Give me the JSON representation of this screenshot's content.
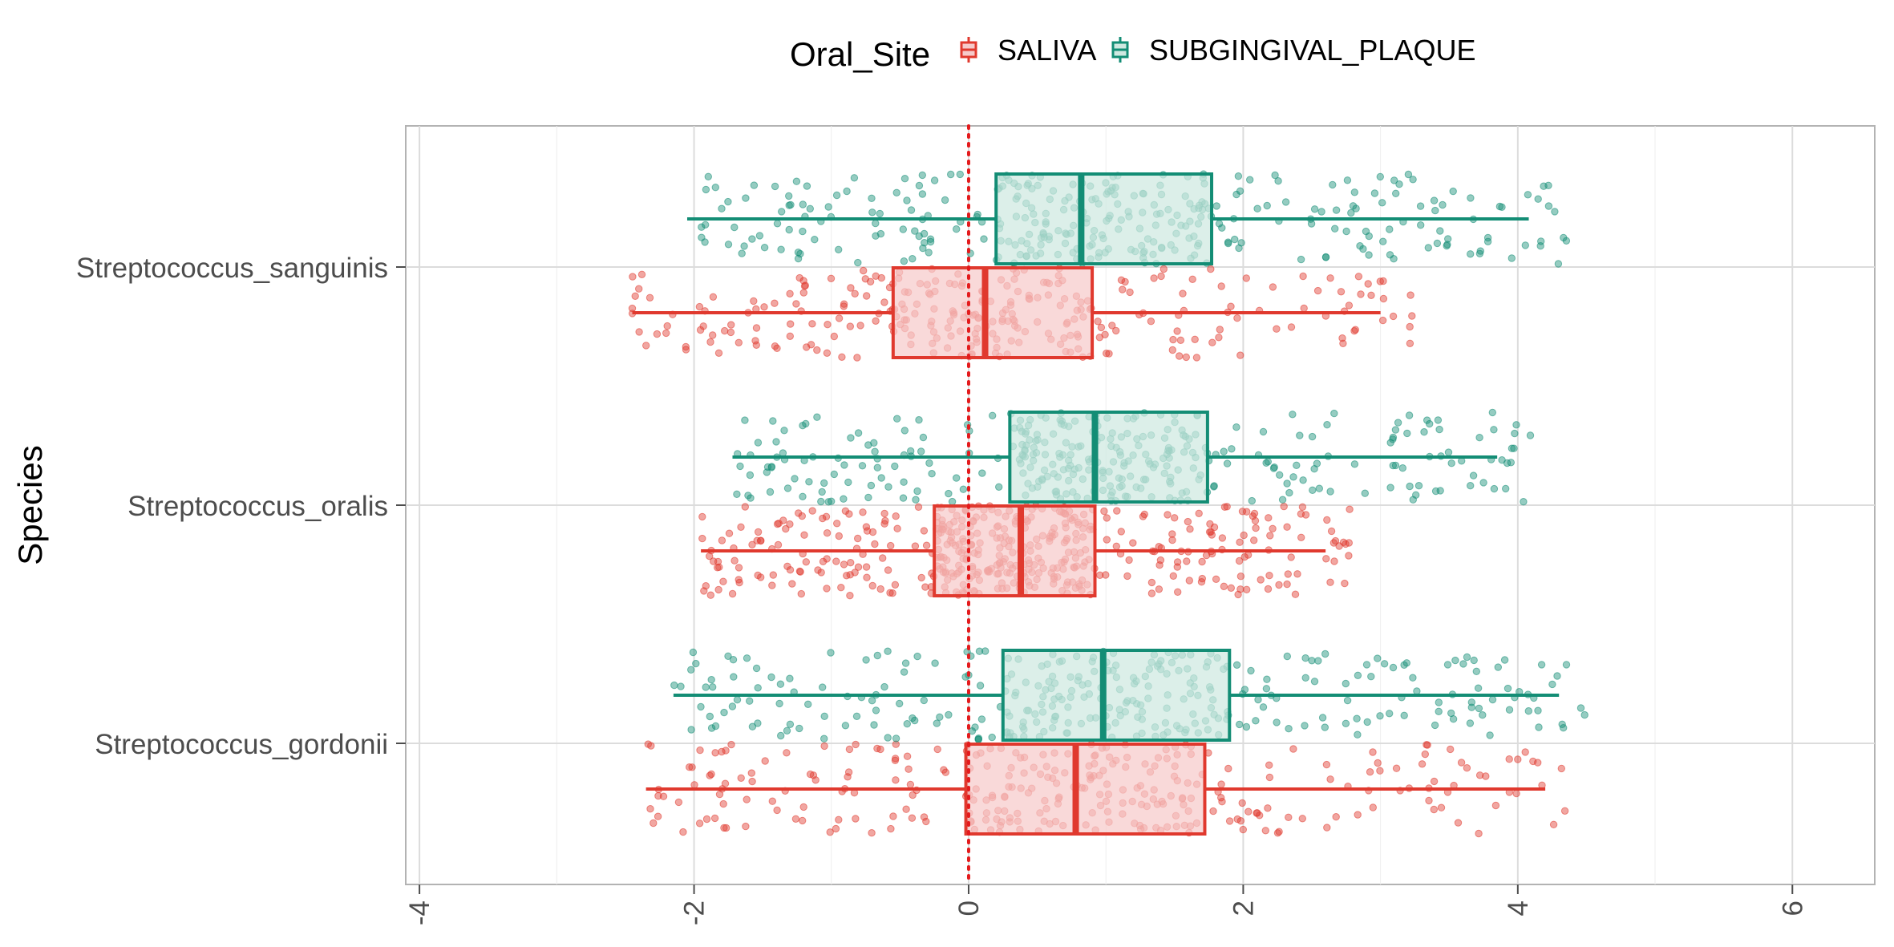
{
  "chart_data": {
    "type": "boxplot",
    "title": "",
    "xlabel": "",
    "ylabel": "Species",
    "xlim": [
      -4.1,
      6.6
    ],
    "xticks": [
      -4,
      -2,
      0,
      2,
      4,
      6
    ],
    "xtick_labels": [
      "-4",
      "-2",
      "0",
      "2",
      "4",
      "6"
    ],
    "reference_line": {
      "x": 0,
      "style": "dotted",
      "color": "#e41a1c"
    },
    "grid": true,
    "legend": {
      "title": "Oral_Site",
      "position": "top"
    },
    "categories": [
      "Streptococcus_sanguinis",
      "Streptococcus_oralis",
      "Streptococcus_gordonii"
    ],
    "series": [
      {
        "name": "SALIVA",
        "color": "#e0392e",
        "fill": "#f6caca",
        "boxes": [
          {
            "category": "Streptococcus_sanguinis",
            "whisker_low": -2.45,
            "q1": -0.55,
            "median": 0.12,
            "q3": 0.9,
            "whisker_high": 3.0,
            "n_points": 280
          },
          {
            "category": "Streptococcus_oralis",
            "whisker_low": -1.95,
            "q1": -0.25,
            "median": 0.38,
            "q3": 0.92,
            "whisker_high": 2.6,
            "n_points": 460
          },
          {
            "category": "Streptococcus_gordonii",
            "whisker_low": -2.35,
            "q1": -0.02,
            "median": 0.78,
            "q3": 1.72,
            "whisker_high": 4.2,
            "n_points": 300
          }
        ]
      },
      {
        "name": "SUBGINGIVAL_PLAQUE",
        "color": "#138d75",
        "fill": "#cfe9e1",
        "boxes": [
          {
            "category": "Streptococcus_sanguinis",
            "whisker_low": -2.05,
            "q1": 0.2,
            "median": 0.82,
            "q3": 1.77,
            "whisker_high": 4.08,
            "n_points": 330
          },
          {
            "category": "Streptococcus_oralis",
            "whisker_low": -1.72,
            "q1": 0.3,
            "median": 0.92,
            "q3": 1.74,
            "whisker_high": 3.85,
            "n_points": 340
          },
          {
            "category": "Streptococcus_gordonii",
            "whisker_low": -2.15,
            "q1": 0.25,
            "median": 0.98,
            "q3": 1.9,
            "whisker_high": 4.3,
            "n_points": 320
          }
        ]
      }
    ]
  }
}
